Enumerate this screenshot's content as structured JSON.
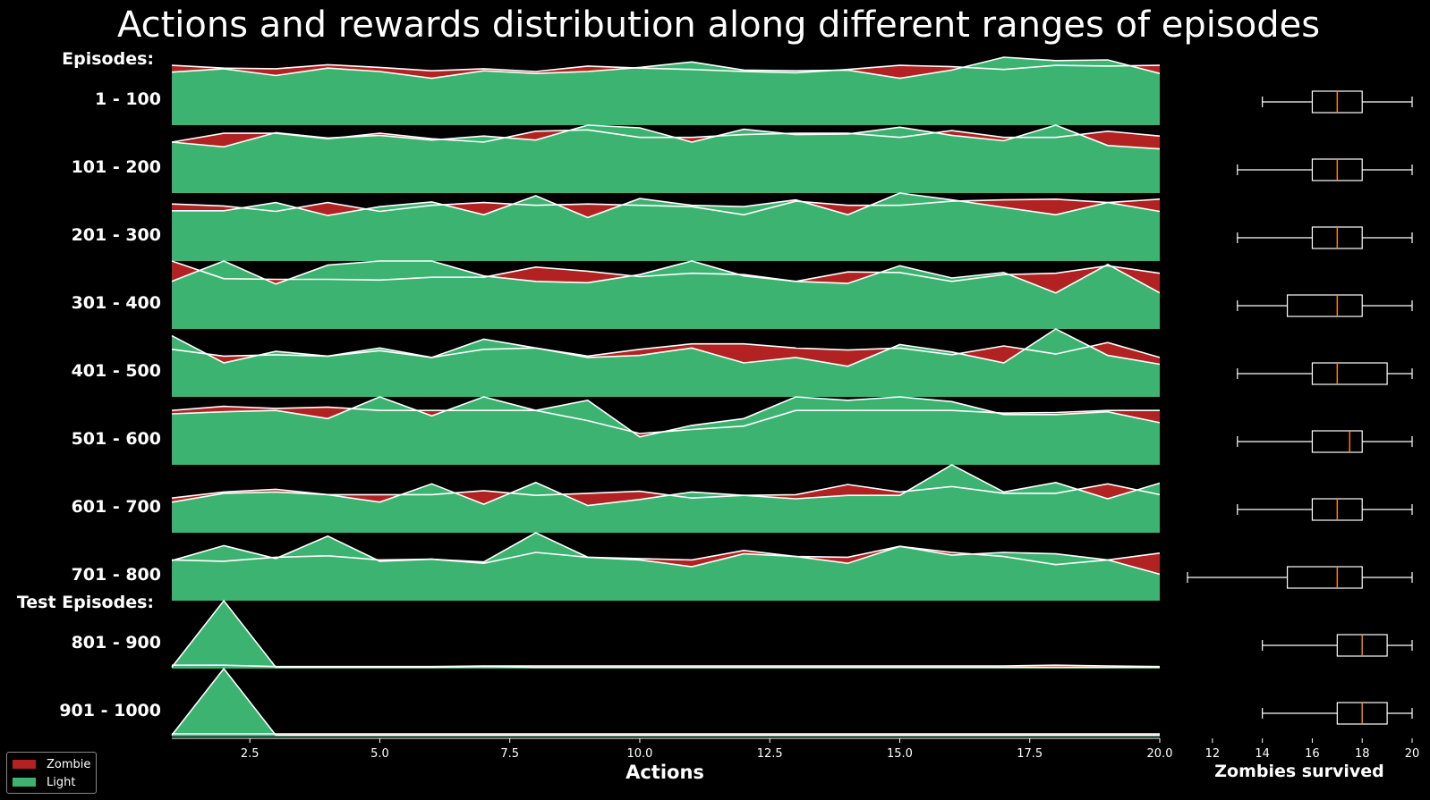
{
  "chart_data": {
    "title": "Actions and rewards distribution along different ranges of episodes",
    "ridge": {
      "type": "area",
      "xlabel": "Actions",
      "xlim": [
        1,
        20
      ],
      "xticks": [
        "2.5",
        "5.0",
        "7.5",
        "10.0",
        "12.5",
        "15.0",
        "17.5",
        "20.0"
      ],
      "x": [
        1,
        2,
        3,
        4,
        5,
        6,
        7,
        8,
        9,
        10,
        11,
        12,
        13,
        14,
        15,
        16,
        17,
        18,
        19,
        20
      ],
      "group_headers": [
        {
          "text": "Episodes:",
          "before_row": 0
        },
        {
          "text": "Test Episodes:",
          "before_row": 8
        }
      ],
      "colors": {
        "zombie": "#b22222",
        "light": "#3cb371"
      },
      "rows": [
        {
          "label": "1 - 100",
          "zombie": [
            0.88,
            0.84,
            0.83,
            0.89,
            0.85,
            0.8,
            0.83,
            0.79,
            0.87,
            0.84,
            0.82,
            0.79,
            0.77,
            0.82,
            0.88,
            0.86,
            0.82,
            0.88,
            0.87,
            0.88
          ],
          "light": [
            0.78,
            0.83,
            0.73,
            0.84,
            0.79,
            0.69,
            0.8,
            0.76,
            0.79,
            0.85,
            0.93,
            0.81,
            0.8,
            0.81,
            0.69,
            0.81,
            1.0,
            0.95,
            0.96,
            0.76
          ]
        },
        {
          "label": "101 - 200",
          "zombie": [
            0.75,
            0.88,
            0.88,
            0.8,
            0.88,
            0.8,
            0.75,
            0.91,
            0.93,
            0.82,
            0.82,
            0.86,
            0.88,
            0.88,
            0.82,
            0.92,
            0.82,
            0.82,
            0.91,
            0.84
          ],
          "light": [
            0.75,
            0.68,
            0.89,
            0.81,
            0.85,
            0.78,
            0.84,
            0.78,
            1.0,
            0.96,
            0.75,
            0.94,
            0.86,
            0.87,
            0.97,
            0.85,
            0.77,
            1.0,
            0.7,
            0.65
          ]
        },
        {
          "label": "201 - 300",
          "zombie": [
            0.84,
            0.81,
            0.73,
            0.86,
            0.73,
            0.82,
            0.86,
            0.82,
            0.84,
            0.82,
            0.8,
            0.68,
            0.88,
            0.82,
            0.82,
            0.88,
            0.9,
            0.91,
            0.86,
            0.91
          ],
          "light": [
            0.74,
            0.74,
            0.86,
            0.67,
            0.8,
            0.87,
            0.68,
            0.96,
            0.64,
            0.92,
            0.82,
            0.8,
            0.9,
            0.68,
            1.0,
            0.9,
            0.79,
            0.68,
            0.86,
            0.73
          ]
        },
        {
          "label": "301 - 400",
          "zombie": [
            1.0,
            0.74,
            0.73,
            0.73,
            0.72,
            0.76,
            0.76,
            0.91,
            0.85,
            0.77,
            0.82,
            0.8,
            0.7,
            0.84,
            0.83,
            0.7,
            0.8,
            0.82,
            0.93,
            0.82
          ],
          "light": [
            0.7,
            1.0,
            0.66,
            0.94,
            1.0,
            1.0,
            0.78,
            0.7,
            0.68,
            0.8,
            1.0,
            0.78,
            0.7,
            0.67,
            0.93,
            0.75,
            0.83,
            0.53,
            0.95,
            0.53
          ]
        },
        {
          "label": "401 - 500",
          "zombie": [
            0.7,
            0.6,
            0.62,
            0.6,
            0.68,
            0.58,
            0.7,
            0.72,
            0.6,
            0.7,
            0.78,
            0.78,
            0.72,
            0.69,
            0.72,
            0.62,
            0.75,
            0.63,
            0.8,
            0.58
          ],
          "light": [
            0.9,
            0.5,
            0.67,
            0.6,
            0.72,
            0.58,
            0.85,
            0.72,
            0.58,
            0.61,
            0.72,
            0.5,
            0.58,
            0.45,
            0.77,
            0.66,
            0.5,
            1.0,
            0.61,
            0.48
          ]
        },
        {
          "label": "501 - 600",
          "zombie": [
            0.8,
            0.86,
            0.83,
            0.85,
            0.8,
            0.8,
            0.8,
            0.8,
            0.65,
            0.46,
            0.52,
            0.57,
            0.8,
            0.8,
            0.8,
            0.8,
            0.76,
            0.77,
            0.8,
            0.8
          ],
          "light": [
            0.75,
            0.78,
            0.8,
            0.68,
            1.0,
            0.72,
            1.0,
            0.8,
            0.95,
            0.41,
            0.58,
            0.68,
            1.0,
            0.95,
            1.0,
            0.93,
            0.74,
            0.74,
            0.78,
            0.62
          ]
        },
        {
          "label": "601 - 700",
          "zombie": [
            0.51,
            0.6,
            0.64,
            0.56,
            0.56,
            0.56,
            0.62,
            0.55,
            0.58,
            0.61,
            0.51,
            0.55,
            0.56,
            0.71,
            0.6,
            0.68,
            0.58,
            0.58,
            0.72,
            0.56
          ],
          "light": [
            0.45,
            0.58,
            0.6,
            0.56,
            0.45,
            0.72,
            0.42,
            0.74,
            0.4,
            0.49,
            0.6,
            0.55,
            0.5,
            0.55,
            0.55,
            1.0,
            0.6,
            0.74,
            0.5,
            0.73
          ]
        },
        {
          "label": "701 - 800",
          "zombie": [
            0.6,
            0.58,
            0.64,
            0.66,
            0.6,
            0.61,
            0.55,
            0.71,
            0.64,
            0.62,
            0.6,
            0.74,
            0.65,
            0.64,
            0.8,
            0.71,
            0.65,
            0.53,
            0.6,
            0.7
          ],
          "light": [
            0.59,
            0.81,
            0.62,
            0.95,
            0.58,
            0.61,
            0.57,
            1.0,
            0.64,
            0.6,
            0.5,
            0.69,
            0.65,
            0.55,
            0.8,
            0.67,
            0.71,
            0.69,
            0.6,
            0.39
          ]
        },
        {
          "label": "801 - 900",
          "zombie": [
            0.05,
            0.05,
            0.03,
            0.03,
            0.03,
            0.03,
            0.04,
            0.04,
            0.04,
            0.04,
            0.04,
            0.04,
            0.04,
            0.04,
            0.04,
            0.04,
            0.04,
            0.05,
            0.04,
            0.03
          ],
          "light": [
            0.02,
            1.0,
            0.02,
            0.02,
            0.02,
            0.02,
            0.03,
            0.02,
            0.02,
            0.02,
            0.02,
            0.02,
            0.02,
            0.02,
            0.02,
            0.02,
            0.02,
            0.02,
            0.02,
            0.02
          ]
        },
        {
          "label": "901 - 1000",
          "zombie": [
            0.04,
            0.04,
            0.04,
            0.04,
            0.04,
            0.04,
            0.04,
            0.04,
            0.04,
            0.04,
            0.04,
            0.04,
            0.04,
            0.04,
            0.04,
            0.04,
            0.04,
            0.04,
            0.04,
            0.04
          ],
          "light": [
            0.02,
            1.0,
            0.02,
            0.02,
            0.02,
            0.02,
            0.02,
            0.02,
            0.02,
            0.02,
            0.02,
            0.02,
            0.02,
            0.02,
            0.02,
            0.02,
            0.02,
            0.02,
            0.02,
            0.02
          ]
        }
      ]
    },
    "boxplot": {
      "type": "box",
      "xlabel": "Zombies survived",
      "xlim": [
        11,
        20
      ],
      "xticks": [
        "12",
        "14",
        "16",
        "18",
        "20"
      ],
      "colors": {
        "box": "#ffffff",
        "median": "#ff8c00"
      },
      "stats": [
        {
          "min": 14,
          "q1": 16,
          "median": 17,
          "q3": 18,
          "max": 20
        },
        {
          "min": 13,
          "q1": 16,
          "median": 17,
          "q3": 18,
          "max": 20
        },
        {
          "min": 13,
          "q1": 16,
          "median": 17,
          "q3": 18,
          "max": 20
        },
        {
          "min": 13,
          "q1": 15,
          "median": 17,
          "q3": 18,
          "max": 20
        },
        {
          "min": 13,
          "q1": 16,
          "median": 17,
          "q3": 19,
          "max": 20
        },
        {
          "min": 13,
          "q1": 16,
          "median": 17.5,
          "q3": 18,
          "max": 20
        },
        {
          "min": 13,
          "q1": 16,
          "median": 17,
          "q3": 18,
          "max": 20
        },
        {
          "min": 11,
          "q1": 15,
          "median": 17,
          "q3": 18,
          "max": 20
        },
        {
          "min": 14,
          "q1": 17,
          "median": 18,
          "q3": 19,
          "max": 20
        },
        {
          "min": 14,
          "q1": 17,
          "median": 18,
          "q3": 19,
          "max": 20
        }
      ]
    },
    "legend": {
      "placement": "bottom-left",
      "items": [
        {
          "label": "Zombie",
          "color": "#b22222"
        },
        {
          "label": "Light",
          "color": "#3cb371"
        }
      ]
    }
  }
}
